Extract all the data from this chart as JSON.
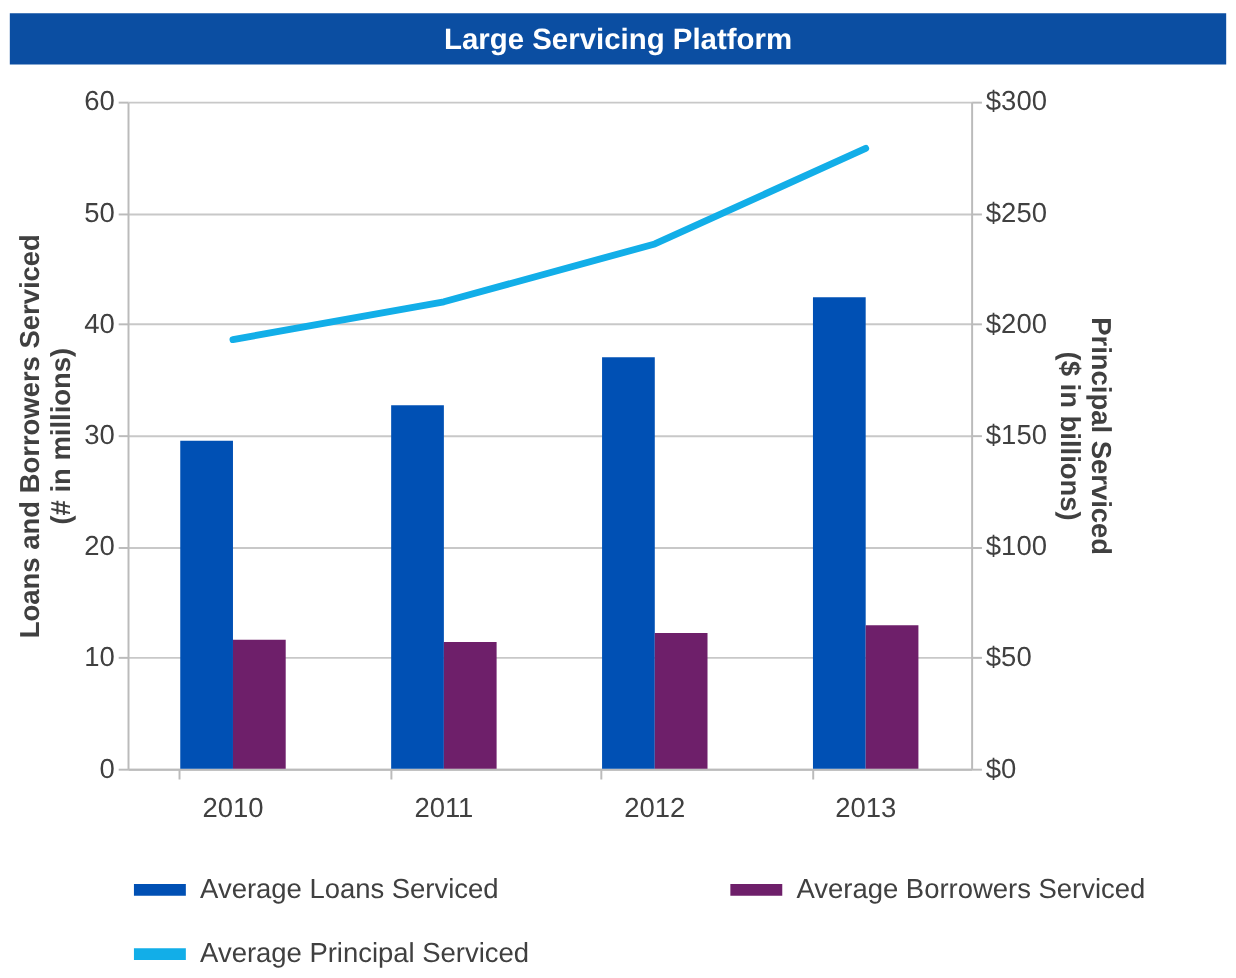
{
  "chart_data": {
    "type": "bar",
    "title": "Large Servicing Platform",
    "categories": [
      "2010",
      "2011",
      "2012",
      "2013"
    ],
    "series": [
      {
        "name": "Average Loans Serviced",
        "color": "#0050b4",
        "values": [
          29.5,
          32.7,
          37.0,
          42.4
        ]
      },
      {
        "name": "Average Borrowers Serviced",
        "color": "#6e1f6a",
        "values": [
          11.6,
          11.4,
          12.2,
          12.9
        ]
      },
      {
        "name": "Average Principal Serviced",
        "color": "#12aee8",
        "type": "line",
        "axis": "y2",
        "values": [
          193,
          210,
          236,
          279
        ]
      }
    ],
    "ylabel": "Loans and Borrowers Serviced\n(# in millions)",
    "y2label": "Principal Serviced\n($ in billions)",
    "ylim": [
      0,
      60
    ],
    "yticks": [
      0,
      10,
      20,
      30,
      40,
      50,
      60
    ],
    "y2lim": [
      0,
      300
    ],
    "y2ticks": [
      {
        "value": 0,
        "label": "$0"
      },
      {
        "value": 50,
        "label": "$50"
      },
      {
        "value": 100,
        "label": "$100"
      },
      {
        "value": 150,
        "label": "$150"
      },
      {
        "value": 200,
        "label": "$200"
      },
      {
        "value": 250,
        "label": "$250"
      },
      {
        "value": 300,
        "label": "$300"
      }
    ],
    "grid": "y",
    "legend": "bottom",
    "marker": "none",
    "line_style": "solid"
  }
}
